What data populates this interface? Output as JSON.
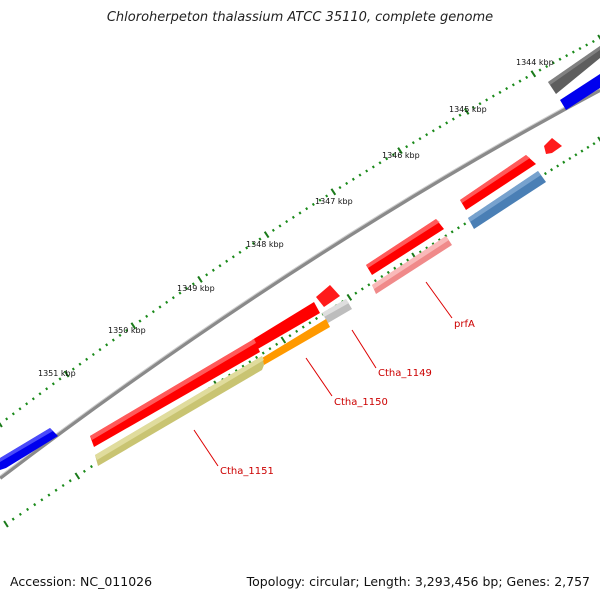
{
  "header": {
    "title": "Chloroherpeton thalassium ATCC 35110, complete genome"
  },
  "footer": {
    "accession": "Accession: NC_011026",
    "summary": "Topology: circular; Length: 3,293,456 bp; Genes: 2,757"
  },
  "tick_labels": [
    "1344 kbp",
    "1345 kbp",
    "1346 kbp",
    "1347 kbp",
    "1348 kbp",
    "1349 kbp",
    "1350 kbp",
    "1351 kbp"
  ],
  "gene_labels": [
    "prfA",
    "Ctha_1149",
    "Ctha_1150",
    "Ctha_1151"
  ],
  "colors": {
    "forward_cds": "#ff0000",
    "reverse_cds_light": "#f08a8a",
    "blue_feature": "#0000ee",
    "steelblue_feature": "#4a7fb5",
    "olive_feature": "#c9c472",
    "orange_feature": "#ff9900",
    "gray_feature": "#b8b8b8",
    "darkgray_feature": "#666666",
    "backbone": "#808080",
    "tick_minor": "#1a8a1a",
    "tick_major": "#1a7a1a",
    "label_color": "#cc0000"
  }
}
